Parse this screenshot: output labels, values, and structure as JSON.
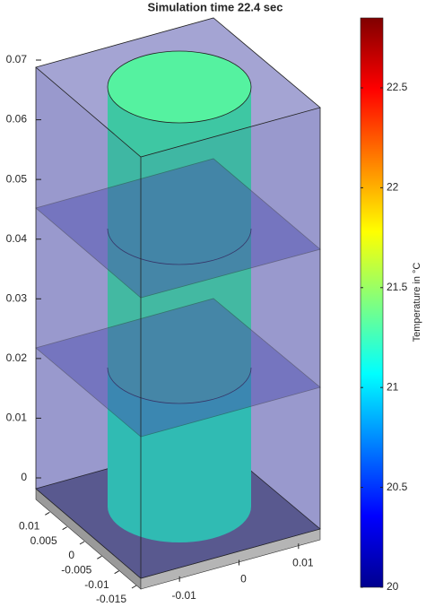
{
  "chart_data": {
    "type": "surface3d",
    "title": "Simulation time 22.4 sec",
    "xlim": [
      -0.015,
      0.015
    ],
    "xticks": [
      -0.01,
      0,
      0.01
    ],
    "ylim": [
      -0.015,
      0.015
    ],
    "yticks": [
      -0.015,
      -0.01,
      -0.005,
      0,
      0.005,
      0.01
    ],
    "zlim": [
      0,
      0.07
    ],
    "zticks": [
      0,
      0.01,
      0.02,
      0.03,
      0.04,
      0.05,
      0.06,
      0.07
    ],
    "colorbar": {
      "label": "Temperature in °C",
      "colormap": "jet",
      "lim": [
        20,
        22.85
      ],
      "ticks": [
        20,
        20.5,
        21,
        21.5,
        22,
        22.5
      ]
    }
  }
}
